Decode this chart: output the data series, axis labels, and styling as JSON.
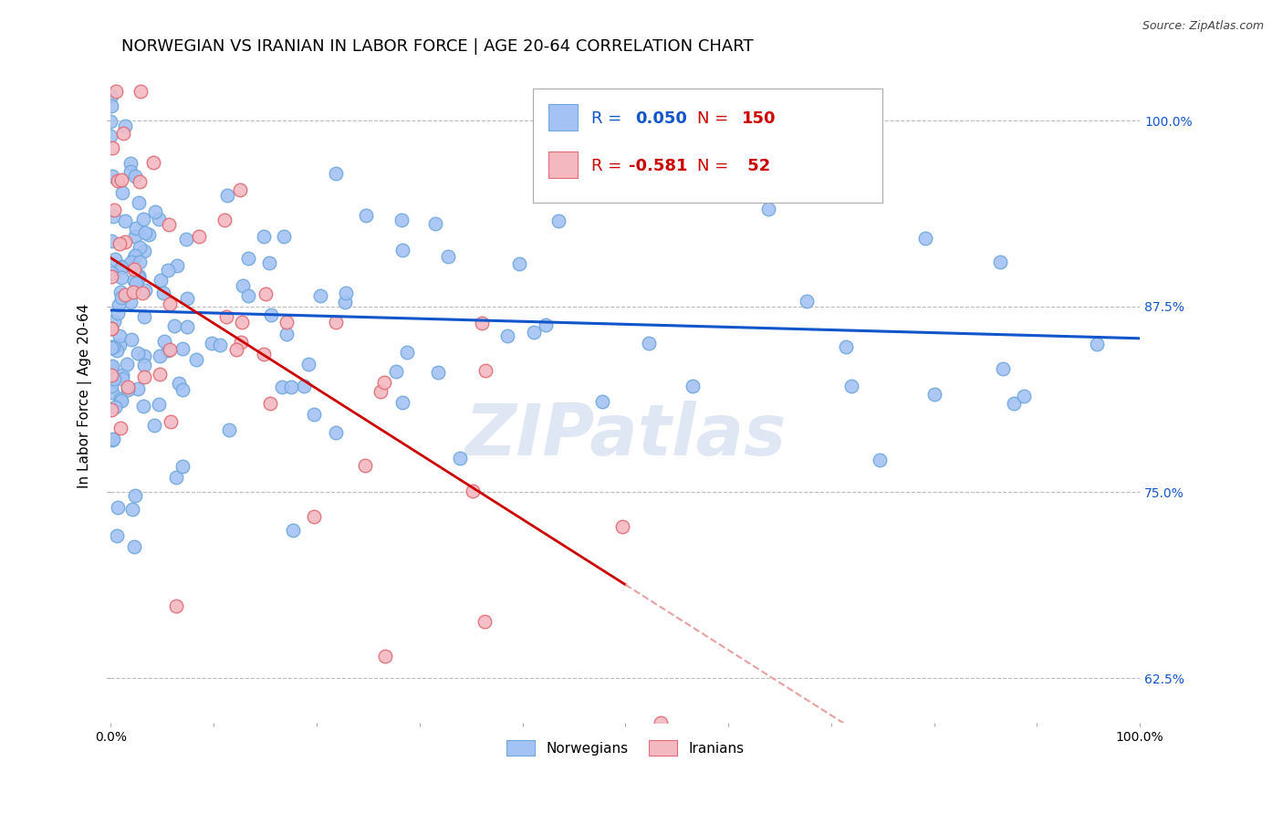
{
  "title": "NORWEGIAN VS IRANIAN IN LABOR FORCE | AGE 20-64 CORRELATION CHART",
  "source": "Source: ZipAtlas.com",
  "ylabel": "In Labor Force | Age 20-64",
  "xlim": [
    0.0,
    1.0
  ],
  "ylim": [
    0.595,
    1.035
  ],
  "yticks": [
    0.625,
    0.75,
    0.875,
    1.0
  ],
  "ytick_labels": [
    "62.5%",
    "75.0%",
    "87.5%",
    "100.0%"
  ],
  "norwegian_color": "#a4c2f4",
  "iranian_color": "#f4b8c1",
  "norwegian_edge": "#6fa8dc",
  "iranian_edge": "#e06c75",
  "trend_norwegian_color": "#1155cc",
  "trend_iranian_solid_color": "#cc0000",
  "trend_iranian_dashed_color": "#e8a0a0",
  "watermark": "ZIPatlas",
  "norwegian_R": 0.05,
  "norwegian_N": 150,
  "iranian_R": -0.581,
  "iranian_N": 52,
  "bg_color": "#ffffff",
  "grid_color": "#bbbbbb",
  "title_fontsize": 13,
  "axis_label_fontsize": 11,
  "tick_fontsize": 10,
  "legend_fontsize": 13,
  "legend_R_color_nor": "#1155cc",
  "legend_N_color_nor": "#cc0000",
  "legend_R_color_ira": "#cc0000",
  "legend_N_color_ira": "#cc0000"
}
